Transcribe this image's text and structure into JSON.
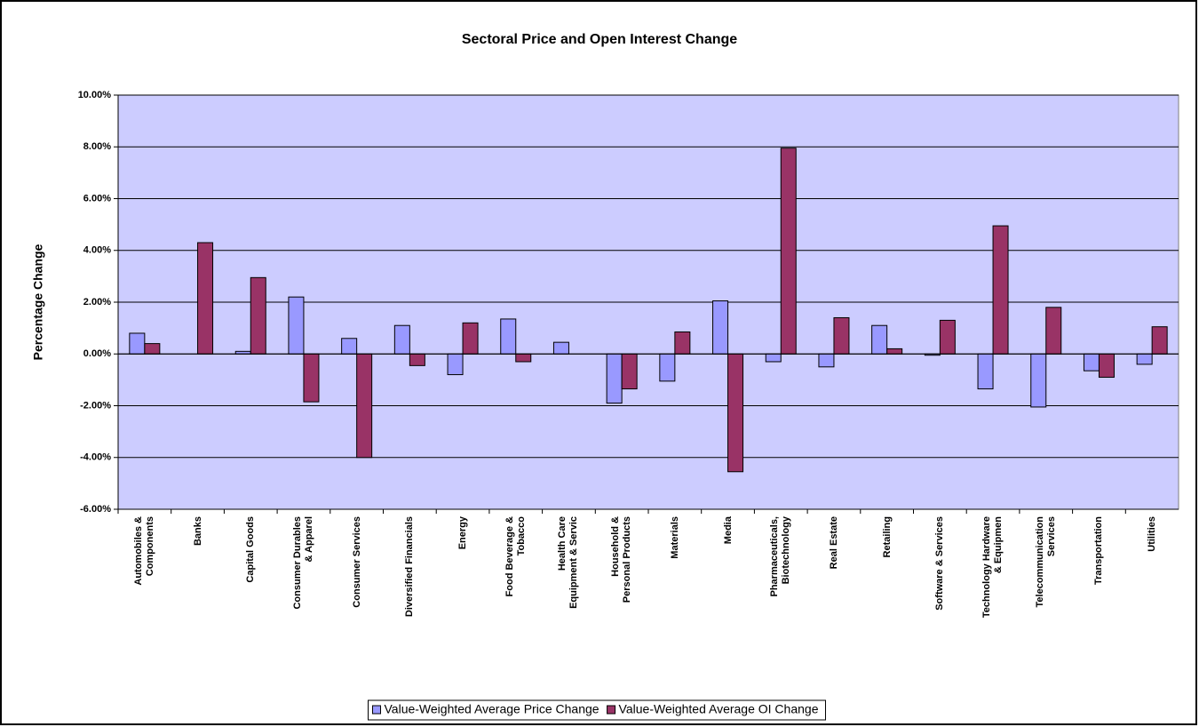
{
  "chart_data": {
    "type": "bar",
    "title": "Sectoral Price and Open Interest Change",
    "y_label": "Percentage Change",
    "categories": [
      "Automobiles &\nComponents",
      "Banks",
      "Capital Goods",
      "Consumer Durables\n& Apparel",
      "Consumer Services",
      "Diversified Financials",
      "Energy",
      "Food Beverage &\nTobacco",
      "Health Care\nEquipment & Servic",
      "Household &\nPersonal Products",
      "Materials",
      "Media",
      "Pharmaceuticals,\nBiotechnology",
      "Real Estate",
      "Retailing",
      "Software & Services",
      "Technology Hardware\n& Equipmen",
      "Telecommunication\nServices",
      "Transportation",
      "Utilities"
    ],
    "series": [
      {
        "name": "Value-Weighted Average Price Change",
        "color": "#9999ff",
        "values": [
          0.8,
          0,
          0.1,
          2.2,
          0.6,
          1.1,
          -0.8,
          1.35,
          0.45,
          -1.9,
          -1.05,
          2.05,
          -0.3,
          -0.5,
          1.1,
          -0.05,
          -1.35,
          -2.05,
          -0.65,
          -0.4
        ]
      },
      {
        "name": "Value-Weighted Average OI Change",
        "color": "#993366",
        "values": [
          0.4,
          4.3,
          2.95,
          -1.85,
          -4.0,
          -0.45,
          1.2,
          -0.3,
          0,
          -1.35,
          0.85,
          -4.55,
          7.95,
          1.4,
          0.2,
          1.3,
          4.95,
          1.8,
          -0.9,
          1.05
        ]
      }
    ],
    "ylim": [
      -6,
      10
    ],
    "yticks": [
      {
        "value": -6,
        "label": "-6.00%"
      },
      {
        "value": -4,
        "label": "-4.00%"
      },
      {
        "value": -2,
        "label": "-2.00%"
      },
      {
        "value": 0,
        "label": "0.00%"
      },
      {
        "value": 2,
        "label": "2.00%"
      },
      {
        "value": 4,
        "label": "4.00%"
      },
      {
        "value": 6,
        "label": "6.00%"
      },
      {
        "value": 8,
        "label": "8.00%"
      },
      {
        "value": 10,
        "label": "10.00%"
      }
    ],
    "grid": true,
    "plot_background": "#ccccff",
    "legend": "bottom"
  }
}
